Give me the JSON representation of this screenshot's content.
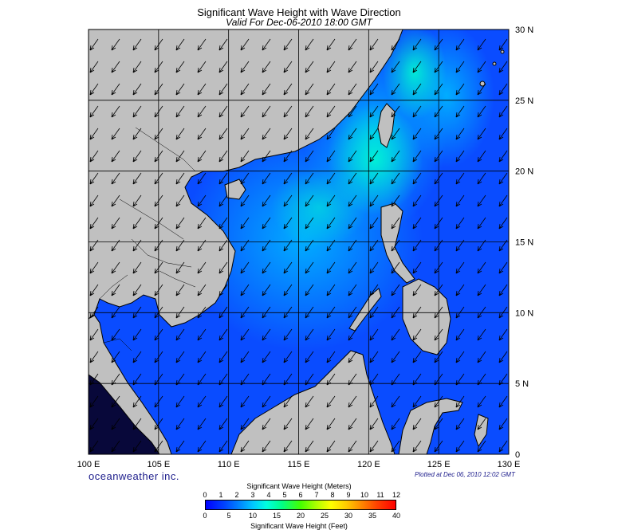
{
  "title": "Significant Wave Height with Wave Direction",
  "subtitle": "Valid For Dec-06-2010 18:00 GMT",
  "brand": "oceanweather inc.",
  "plotted": "Plotted at Dec 06, 2010 12:02 GMT",
  "axes": {
    "x_labels": [
      "100 E",
      "105 E",
      "110 E",
      "115 E",
      "120 E",
      "125 E",
      "130 E"
    ],
    "y_labels": [
      "30 N",
      "25 N",
      "20 N",
      "15 N",
      "10 N",
      "5 N",
      "0"
    ]
  },
  "legend": {
    "title_meters": "Significant Wave Height (Meters)",
    "title_feet": "Significant Wave Height (Feet)",
    "meter_ticks": [
      "0",
      "1",
      "2",
      "3",
      "4",
      "5",
      "6",
      "7",
      "8",
      "9",
      "10",
      "11",
      "12"
    ],
    "feet_ticks": [
      "0",
      "5",
      "10",
      "15",
      "20",
      "25",
      "30",
      "35",
      "40"
    ]
  },
  "colors": {
    "land": "#c0c0c0",
    "ocean_low": "#0044ff",
    "ocean_mid": "#00a0ff",
    "ocean_high": "#00ffc8",
    "arrow": "#000000"
  }
}
